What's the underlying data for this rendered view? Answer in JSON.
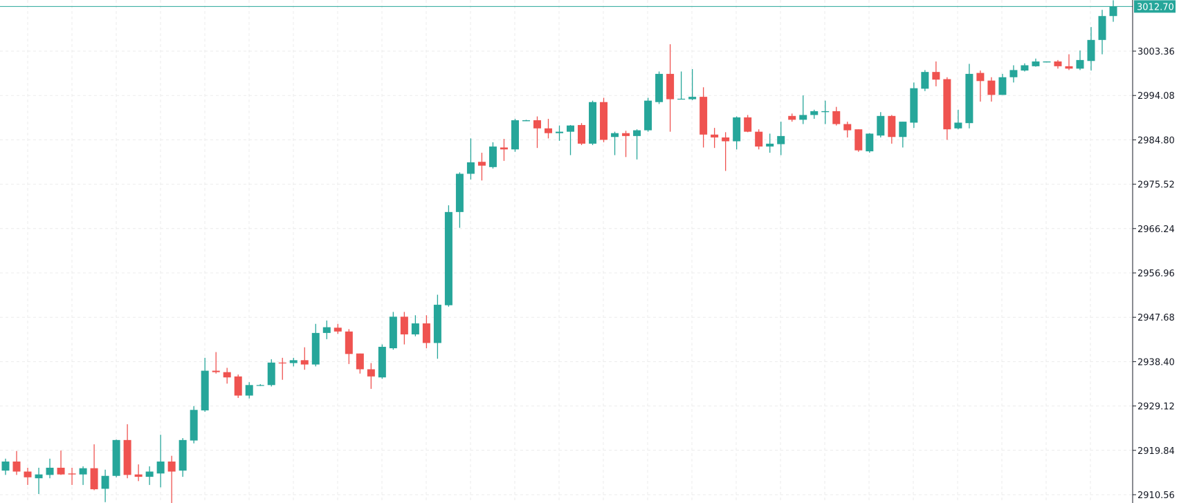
{
  "chart_data": {
    "type": "candlestick",
    "title": "",
    "xlabel": "",
    "ylabel": "",
    "ylim": [
      2908.5,
      3014.2
    ],
    "grid": true,
    "colors": {
      "up": "#26a69a",
      "down": "#ef5350",
      "grid": "#ebebeb",
      "axis": "#131722",
      "last_price": "#26a69a"
    },
    "y_ticks": [
      "3003.36",
      "2994.08",
      "2984.80",
      "2975.52",
      "2966.24",
      "2956.96",
      "2947.68",
      "2938.40",
      "2929.12",
      "2919.84",
      "2910.56"
    ],
    "last_price": "3012.70",
    "candles": [
      [
        2915.6,
        2918.1,
        2914.7,
        2917.5
      ],
      [
        2917.5,
        2919.7,
        2914.7,
        2915.4
      ],
      [
        2915.4,
        2916.2,
        2912.6,
        2914.2
      ],
      [
        2914.0,
        2916.2,
        2910.7,
        2914.8
      ],
      [
        2914.7,
        2918.1,
        2914.0,
        2916.2
      ],
      [
        2916.2,
        2919.8,
        2914.7,
        2914.8
      ],
      [
        2915.0,
        2916.2,
        2912.6,
        2914.8
      ],
      [
        2914.8,
        2916.5,
        2912.6,
        2916.1
      ],
      [
        2916.1,
        2921.1,
        2911.5,
        2911.7
      ],
      [
        2911.8,
        2915.8,
        2909.0,
        2914.5
      ],
      [
        2914.5,
        2922.1,
        2914.2,
        2922.0
      ],
      [
        2922.0,
        2925.3,
        2914.0,
        2914.7
      ],
      [
        2914.8,
        2916.9,
        2913.4,
        2914.3
      ],
      [
        2914.3,
        2916.5,
        2912.6,
        2915.4
      ],
      [
        2915.0,
        2923.1,
        2912.1,
        2917.5
      ],
      [
        2917.5,
        2918.7,
        2908.7,
        2915.4
      ],
      [
        2915.6,
        2922.4,
        2914.3,
        2922.0
      ],
      [
        2921.9,
        2929.1,
        2921.3,
        2928.3
      ],
      [
        2928.2,
        2939.2,
        2927.9,
        2936.5
      ],
      [
        2936.5,
        2940.4,
        2935.9,
        2936.2
      ],
      [
        2936.2,
        2937.1,
        2933.8,
        2935.1
      ],
      [
        2935.3,
        2935.7,
        2930.8,
        2931.3
      ],
      [
        2931.3,
        2934.1,
        2930.7,
        2933.5
      ],
      [
        2933.4,
        2933.7,
        2933.3,
        2933.5
      ],
      [
        2933.5,
        2938.9,
        2933.2,
        2938.2
      ],
      [
        2938.2,
        2939.2,
        2934.6,
        2938.1
      ],
      [
        2938.1,
        2939.2,
        2937.4,
        2938.7
      ],
      [
        2938.7,
        2941.4,
        2936.7,
        2937.8
      ],
      [
        2937.8,
        2946.3,
        2937.4,
        2944.4
      ],
      [
        2944.4,
        2947.0,
        2943.1,
        2945.6
      ],
      [
        2945.5,
        2946.3,
        2944.2,
        2944.7
      ],
      [
        2944.7,
        2945.2,
        2937.9,
        2940.0
      ],
      [
        2940.1,
        2940.1,
        2935.9,
        2936.8
      ],
      [
        2936.8,
        2938.1,
        2932.7,
        2935.3
      ],
      [
        2935.1,
        2942.0,
        2934.8,
        2941.5
      ],
      [
        2941.2,
        2948.8,
        2940.9,
        2947.8
      ],
      [
        2947.8,
        2948.8,
        2942.0,
        2944.1
      ],
      [
        2944.1,
        2948.1,
        2943.7,
        2946.4
      ],
      [
        2946.4,
        2948.1,
        2941.2,
        2942.3
      ],
      [
        2942.3,
        2952.4,
        2939.0,
        2950.3
      ],
      [
        2950.2,
        2971.1,
        2949.9,
        2969.7
      ],
      [
        2969.7,
        2978.0,
        2966.4,
        2977.7
      ],
      [
        2977.7,
        2985.1,
        2976.5,
        2980.1
      ],
      [
        2980.2,
        2982.1,
        2976.3,
        2979.4
      ],
      [
        2979.1,
        2984.3,
        2978.8,
        2983.4
      ],
      [
        2983.2,
        2985.0,
        2980.4,
        2982.8
      ],
      [
        2982.8,
        2989.2,
        2982.3,
        2988.9
      ],
      [
        2988.7,
        2989.0,
        2988.7,
        2988.9
      ],
      [
        2988.9,
        2989.7,
        2983.1,
        2987.2
      ],
      [
        2987.2,
        2989.2,
        2985.1,
        2986.2
      ],
      [
        2986.2,
        2987.8,
        2984.6,
        2986.5
      ],
      [
        2986.5,
        2987.9,
        2981.6,
        2987.8
      ],
      [
        2987.9,
        2988.3,
        2983.7,
        2984.0
      ],
      [
        2984.0,
        2993.0,
        2983.7,
        2992.7
      ],
      [
        2992.7,
        2993.6,
        2984.3,
        2984.8
      ],
      [
        2985.4,
        2986.5,
        2981.6,
        2986.2
      ],
      [
        2986.2,
        2986.7,
        2981.2,
        2985.6
      ],
      [
        2985.6,
        2987.0,
        2980.7,
        2986.8
      ],
      [
        2986.8,
        2993.6,
        2986.5,
        2993.0
      ],
      [
        2992.7,
        2999.1,
        2992.3,
        2998.6
      ],
      [
        2998.6,
        3004.8,
        2986.5,
        2993.3
      ],
      [
        2993.3,
        2999.1,
        2993.3,
        2993.4
      ],
      [
        2993.3,
        2999.6,
        2993.1,
        2993.8
      ],
      [
        2993.8,
        2995.8,
        2983.2,
        2985.9
      ],
      [
        2985.9,
        2987.3,
        2983.1,
        2985.3
      ],
      [
        2985.3,
        2986.4,
        2978.3,
        2984.5
      ],
      [
        2984.5,
        2989.7,
        2982.8,
        2989.5
      ],
      [
        2989.5,
        2990.0,
        2986.4,
        2986.5
      ],
      [
        2986.5,
        2987.0,
        2982.8,
        2983.4
      ],
      [
        2983.4,
        2986.1,
        2982.1,
        2984.0
      ],
      [
        2983.9,
        2988.6,
        2981.6,
        2985.6
      ],
      [
        2989.8,
        2990.3,
        2988.6,
        2989.0
      ],
      [
        2989.0,
        2994.1,
        2988.1,
        2990.0
      ],
      [
        2990.0,
        2991.1,
        2989.2,
        2990.8
      ],
      [
        2990.6,
        2993.0,
        2988.1,
        2990.8
      ],
      [
        2990.8,
        2991.7,
        2987.8,
        2988.1
      ],
      [
        2988.1,
        2988.6,
        2985.3,
        2986.8
      ],
      [
        2987.0,
        2987.0,
        2982.3,
        2982.6
      ],
      [
        2982.4,
        2986.2,
        2982.1,
        2986.1
      ],
      [
        2985.7,
        2990.6,
        2985.3,
        2989.8
      ],
      [
        2989.8,
        2990.0,
        2984.0,
        2985.4
      ],
      [
        2985.4,
        2988.6,
        2983.2,
        2988.6
      ],
      [
        2988.4,
        2996.8,
        2987.3,
        2995.6
      ],
      [
        2995.5,
        2999.4,
        2995.0,
        2999.0
      ],
      [
        2999.0,
        3001.2,
        2996.0,
        2997.4
      ],
      [
        2997.5,
        2997.9,
        2984.8,
        2987.0
      ],
      [
        2987.2,
        2991.1,
        2987.0,
        2988.4
      ],
      [
        2988.3,
        3000.7,
        2987.2,
        2998.6
      ],
      [
        2998.8,
        2999.3,
        2992.8,
        2997.1
      ],
      [
        2997.2,
        2997.9,
        2992.8,
        2994.2
      ],
      [
        2994.2,
        2998.6,
        2994.2,
        2997.9
      ],
      [
        2997.9,
        3000.4,
        2996.8,
        2999.4
      ],
      [
        2999.3,
        3000.8,
        2999.1,
        3000.4
      ],
      [
        3000.2,
        3001.8,
        3000.1,
        3001.2
      ],
      [
        3001.0,
        3001.2,
        3001.0,
        3001.2
      ],
      [
        3001.2,
        3001.5,
        2999.7,
        3000.2
      ],
      [
        3000.2,
        3002.7,
        2999.4,
        2999.7
      ],
      [
        2999.7,
        3003.5,
        2999.4,
        3001.5
      ],
      [
        3001.3,
        3008.4,
        2999.3,
        3005.7
      ],
      [
        3005.7,
        3012.0,
        3002.7,
        3010.7
      ],
      [
        3010.7,
        3014.0,
        3009.5,
        3012.7
      ]
    ],
    "candle_format": [
      "open",
      "high",
      "low",
      "close"
    ]
  }
}
